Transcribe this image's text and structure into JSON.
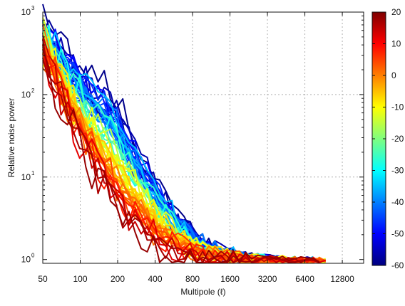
{
  "chart_data": {
    "type": "line",
    "title": "",
    "xlabel": "Multipole (ℓ)",
    "ylabel": "Relative noise power",
    "xscale": "log",
    "yscale": "log",
    "xlim": [
      50,
      19000
    ],
    "ylim": [
      0.9,
      1000
    ],
    "grid": true,
    "xticks": [
      50,
      100,
      200,
      400,
      800,
      1600,
      3200,
      6400,
      12800
    ],
    "xtick_labels": [
      "50",
      "100",
      "200",
      "400",
      "800",
      "1600",
      "3200",
      "6400",
      "12800"
    ],
    "yticks": [
      1,
      10,
      100,
      1000
    ],
    "ytick_labels": [
      "10",
      "10",
      "10",
      "10"
    ],
    "ytick_exponents": [
      "0",
      "1",
      "2",
      "3"
    ],
    "colorbar": {
      "colormap": "jet",
      "min": -60,
      "max": 20,
      "ticks": [
        20,
        10,
        0,
        -10,
        -20,
        -30,
        -40,
        -50,
        -60
      ],
      "tick_labels": [
        "20",
        "10",
        "0",
        "-10",
        "-20",
        "-30",
        "-40",
        "-50",
        "-60"
      ],
      "placement": "right"
    },
    "colormap_stops": [
      "#00007f",
      "#0000ff",
      "#007fff",
      "#00ffff",
      "#7fff7f",
      "#ffff00",
      "#ff7f00",
      "#ff0000",
      "#7f0000"
    ],
    "series_count": 60,
    "series_value_range": [
      -60,
      20
    ],
    "x_samples": [
      50,
      56,
      63,
      70,
      79,
      88,
      99,
      111,
      124,
      139,
      156,
      175,
      196,
      220,
      246,
      276,
      309,
      346,
      388,
      435,
      487,
      546,
      612,
      685,
      768,
      860,
      964,
      1080,
      1210,
      1356,
      1520,
      1703,
      1908,
      2138,
      2396,
      2684,
      3008,
      3370,
      3776,
      4231,
      4741,
      5312,
      5952,
      6669,
      7472,
      8372,
      9400
    ],
    "envelope_low": [
      300,
      190,
      120,
      75,
      48,
      32,
      22,
      15,
      11,
      8,
      6,
      4.6,
      3.6,
      2.9,
      2.4,
      2.05,
      1.8,
      1.6,
      1.45,
      1.33,
      1.24,
      1.17,
      1.12,
      1.08,
      1.05,
      1.03,
      1.02,
      1.01,
      1.0,
      1.0,
      0.99,
      0.99,
      0.99,
      0.98,
      0.98,
      0.98,
      0.98,
      0.97,
      0.97,
      0.97,
      0.97,
      0.97,
      0.97,
      0.97,
      0.97,
      0.96,
      0.96
    ],
    "envelope_high": [
      900,
      700,
      520,
      420,
      380,
      340,
      300,
      260,
      220,
      200,
      180,
      150,
      120,
      90,
      60,
      40,
      28,
      20,
      14,
      10,
      7.5,
      5.5,
      4.2,
      3.3,
      2.7,
      2.2,
      1.9,
      1.65,
      1.48,
      1.36,
      1.27,
      1.2,
      1.15,
      1.11,
      1.08,
      1.06,
      1.05,
      1.04,
      1.03,
      1.03,
      1.02,
      1.02,
      1.01,
      1.01,
      1.01,
      1.0,
      1.0
    ]
  }
}
